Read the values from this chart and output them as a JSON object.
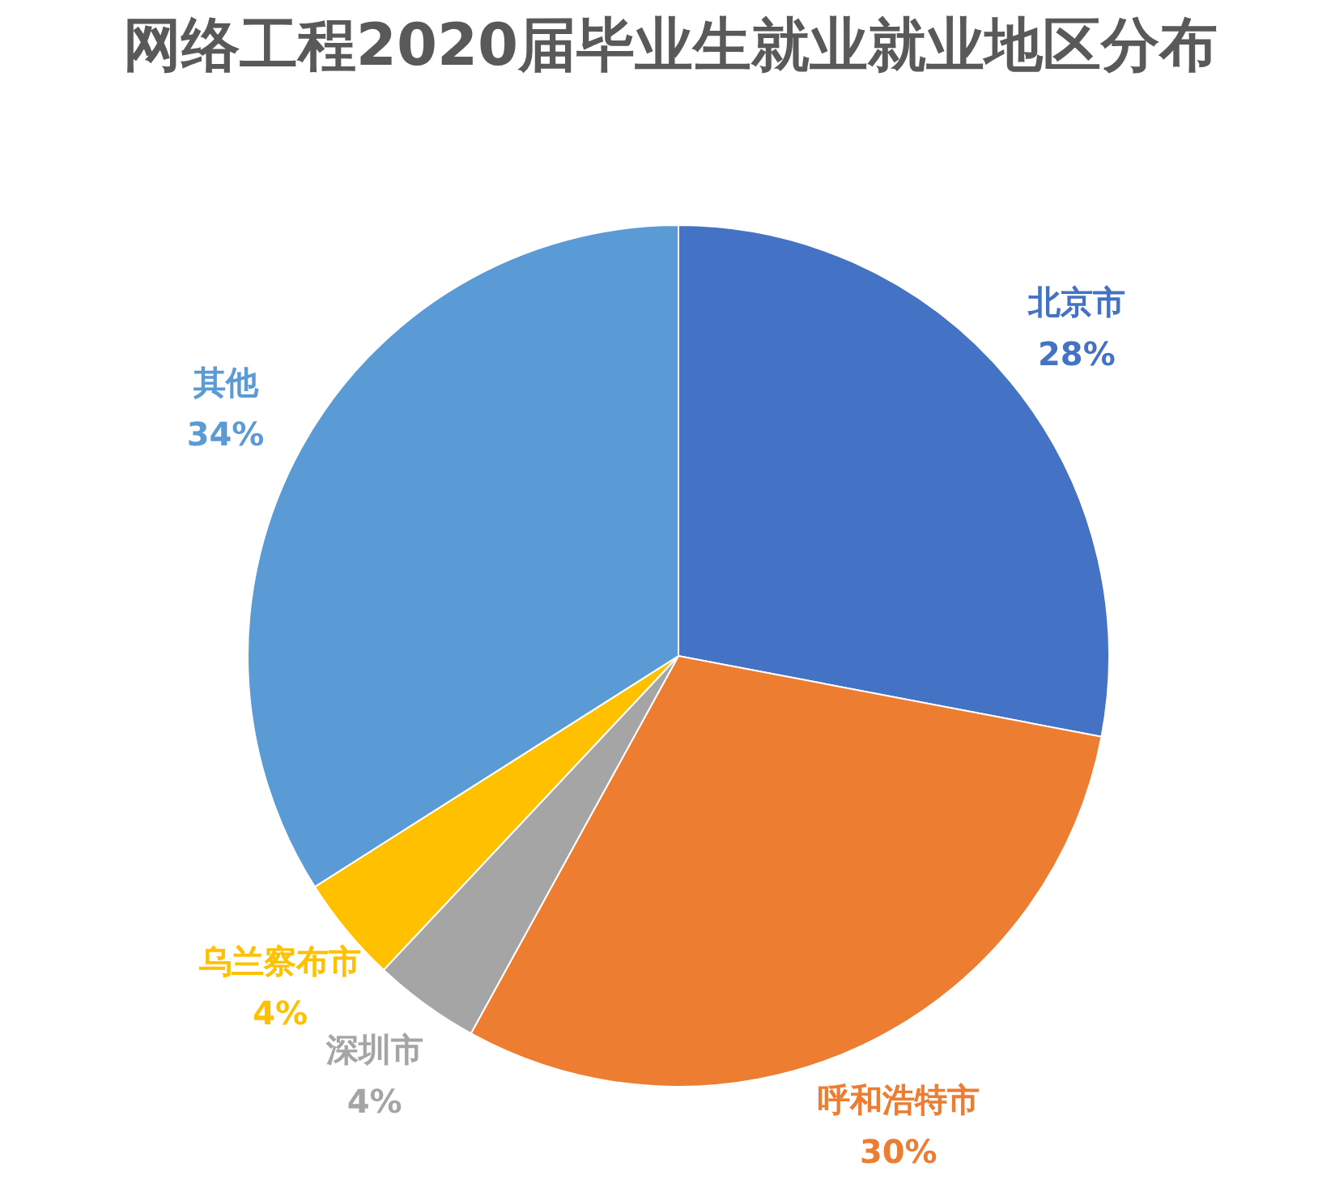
{
  "chart_data": {
    "type": "pie",
    "title": "网络工程2020届毕业生就业就业地区分布",
    "categories": [
      "北京市",
      "呼和浩特市",
      "深圳市",
      "乌兰察布市",
      "其他"
    ],
    "values": [
      28,
      30,
      4,
      4,
      34
    ],
    "colors": [
      "#4472c4",
      "#ed7d31",
      "#a5a5a5",
      "#ffc000",
      "#5b9bd5"
    ],
    "value_labels": [
      "28%",
      "30%",
      "4%",
      "4%",
      "34%"
    ],
    "legend": false
  }
}
